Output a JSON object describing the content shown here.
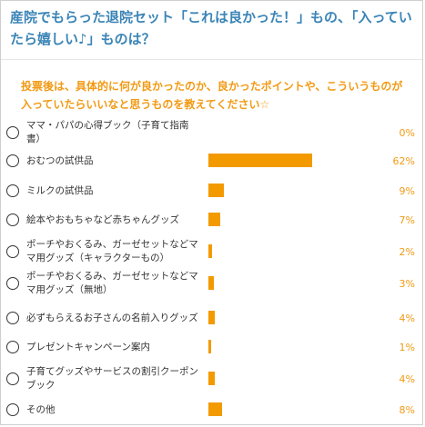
{
  "poll": {
    "title": "産院でもらった退院セット「これは良かった！」もの、「入っていたら嬉しい♪」ものは？",
    "description": "投票後は、具体的に何が良かったのか、良かったポイントや、こういうものが入っていたらいいなと思うものを教えてください☆",
    "bar_color": "#f39a00",
    "options": [
      {
        "label": "ママ・パパの心得ブック（子育て指南書）",
        "percent_text": "0%",
        "value": 0
      },
      {
        "label": "おむつの試供品",
        "percent_text": "62%",
        "value": 62
      },
      {
        "label": "ミルクの試供品",
        "percent_text": "9%",
        "value": 9
      },
      {
        "label": "絵本やおもちゃなど赤ちゃんグッズ",
        "percent_text": "7%",
        "value": 7
      },
      {
        "label": "ポーチやおくるみ、ガーゼセットなどママ用グッズ（キャラクターもの）",
        "percent_text": "2%",
        "value": 2
      },
      {
        "label": "ポーチやおくるみ、ガーゼセットなどママ用グッズ（無地）",
        "percent_text": "3%",
        "value": 3
      },
      {
        "label": "必ずもらえるお子さんの名前入りグッズ",
        "percent_text": "4%",
        "value": 4
      },
      {
        "label": "プレゼントキャンペーン案内",
        "percent_text": "1%",
        "value": 1
      },
      {
        "label": "子育てグッズやサービスの割引クーポンブック",
        "percent_text": "4%",
        "value": 4
      },
      {
        "label": "その他",
        "percent_text": "8%",
        "value": 8
      }
    ]
  }
}
